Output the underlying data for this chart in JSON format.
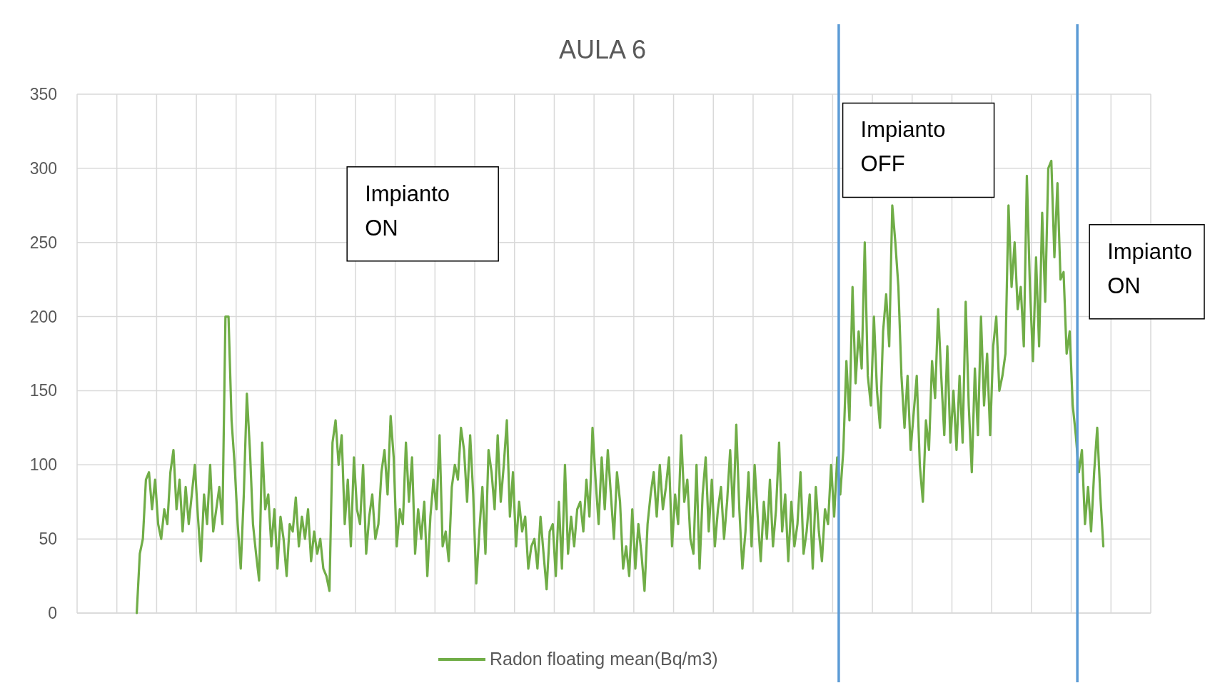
{
  "chart_data": {
    "type": "line",
    "title": "AULA 6",
    "categories": [
      null,
      null,
      null,
      null,
      null,
      null,
      null,
      null,
      null,
      null,
      null,
      null,
      null,
      null,
      null,
      null,
      null,
      null,
      null,
      null,
      null,
      null,
      null,
      null,
      null,
      null,
      null,
      null,
      null,
      null,
      null,
      null,
      null,
      null,
      null,
      null,
      null,
      null,
      null,
      null,
      null,
      null,
      null,
      null,
      null,
      null,
      null,
      null,
      null,
      null,
      null,
      null,
      null,
      null,
      null,
      null,
      null,
      null,
      null,
      null,
      null,
      null,
      null,
      null,
      null,
      null,
      null,
      null,
      null,
      null,
      null,
      null,
      null,
      null,
      null,
      null,
      null,
      null,
      null,
      null,
      null,
      null,
      null,
      null,
      null,
      null,
      null,
      null,
      null,
      null,
      null,
      null,
      null,
      null,
      null,
      null,
      null,
      null,
      null,
      null,
      null,
      null,
      null,
      null,
      null,
      null,
      null,
      null,
      null,
      null,
      null,
      null,
      null,
      null,
      null,
      null,
      null,
      null,
      null,
      null,
      null,
      null,
      null,
      null,
      null,
      null,
      null,
      null,
      null,
      null,
      null,
      null,
      null,
      null,
      null,
      null,
      null,
      null,
      null,
      null,
      null,
      null,
      null,
      null,
      null,
      null,
      null,
      null,
      null,
      null,
      null,
      null,
      null,
      null,
      null,
      null,
      null,
      null,
      null,
      null,
      null,
      null,
      null,
      null,
      null,
      null,
      null,
      null,
      null,
      null,
      null,
      null,
      null,
      null,
      null,
      null,
      null,
      null,
      null,
      null,
      null,
      null,
      null,
      null,
      null,
      null,
      null,
      null,
      null,
      null,
      null,
      null,
      null,
      null,
      null,
      null,
      null,
      null,
      null,
      null,
      null,
      null,
      null,
      null,
      null,
      null,
      null,
      null,
      null,
      null,
      null,
      null,
      null,
      null,
      null,
      null,
      null,
      null,
      null,
      null,
      null,
      null,
      null,
      null,
      null,
      null,
      null,
      null,
      null,
      null,
      null,
      null,
      null,
      null,
      null,
      null,
      null,
      null,
      null,
      null,
      null,
      null,
      null,
      null,
      null,
      null,
      null,
      null,
      null,
      null,
      null,
      null,
      null,
      null,
      null,
      null,
      null,
      null,
      null,
      null,
      null,
      null,
      null,
      null,
      null,
      null,
      null,
      null,
      null,
      null,
      null,
      null,
      null,
      null,
      null,
      null,
      null,
      null,
      null,
      null,
      null,
      null,
      null,
      null,
      null,
      null,
      null,
      null,
      null,
      null,
      null,
      null,
      null,
      null,
      null,
      null,
      null,
      null,
      null,
      null,
      null,
      null,
      null,
      null,
      null,
      null,
      null,
      null,
      null,
      null,
      null,
      null,
      null,
      null,
      null,
      null,
      null,
      null,
      null,
      null,
      null,
      null,
      null,
      null,
      null,
      null,
      null,
      null,
      null,
      null,
      null,
      null,
      null,
      null,
      null,
      null,
      null,
      null,
      null,
      null,
      null,
      null,
      null,
      null,
      null,
      null,
      null,
      null,
      null,
      null,
      null
    ],
    "series": [
      {
        "name": "Radon floating mean(Bq/m3)",
        "color": "#70ad47",
        "values": [
          null,
          null,
          null,
          null,
          null,
          null,
          null,
          null,
          null,
          null,
          null,
          null,
          null,
          null,
          null,
          null,
          null,
          null,
          null,
          0,
          40,
          50,
          90,
          95,
          70,
          90,
          60,
          50,
          70,
          60,
          95,
          110,
          70,
          90,
          55,
          85,
          60,
          80,
          100,
          65,
          35,
          80,
          60,
          100,
          55,
          70,
          85,
          60,
          200,
          200,
          130,
          100,
          60,
          30,
          80,
          148,
          110,
          60,
          40,
          22,
          115,
          70,
          80,
          45,
          70,
          30,
          65,
          50,
          25,
          60,
          55,
          78,
          45,
          65,
          50,
          70,
          35,
          55,
          40,
          50,
          30,
          25,
          15,
          115,
          130,
          100,
          120,
          60,
          90,
          45,
          105,
          70,
          60,
          100,
          40,
          65,
          80,
          50,
          60,
          95,
          110,
          80,
          133,
          105,
          45,
          70,
          60,
          115,
          75,
          105,
          40,
          70,
          50,
          75,
          25,
          65,
          90,
          70,
          120,
          45,
          55,
          35,
          85,
          100,
          90,
          125,
          110,
          75,
          120,
          80,
          20,
          55,
          85,
          40,
          110,
          95,
          70,
          120,
          75,
          100,
          130,
          65,
          95,
          45,
          75,
          55,
          65,
          30,
          45,
          50,
          30,
          65,
          40,
          16,
          55,
          60,
          25,
          75,
          30,
          100,
          40,
          65,
          45,
          70,
          75,
          55,
          90,
          65,
          125,
          90,
          60,
          105,
          70,
          110,
          80,
          50,
          95,
          75,
          30,
          45,
          25,
          70,
          30,
          60,
          40,
          15,
          60,
          80,
          95,
          65,
          100,
          70,
          85,
          105,
          45,
          80,
          60,
          120,
          75,
          90,
          50,
          40,
          100,
          30,
          80,
          105,
          55,
          90,
          45,
          70,
          85,
          50,
          75,
          110,
          65,
          127,
          70,
          30,
          55,
          95,
          45,
          100,
          65,
          35,
          75,
          50,
          90,
          45,
          70,
          115,
          55,
          80,
          35,
          75,
          45,
          60,
          95,
          40,
          55,
          80,
          30,
          85,
          55,
          35,
          70,
          60,
          100,
          65,
          105,
          80,
          110,
          170,
          130,
          220,
          155,
          190,
          165,
          250,
          160,
          140,
          200,
          150,
          125,
          190,
          215,
          180,
          275,
          250,
          220,
          160,
          125,
          160,
          110,
          135,
          160,
          100,
          75,
          130,
          110,
          170,
          145,
          205,
          160,
          120,
          180,
          115,
          150,
          110,
          160,
          115,
          210,
          140,
          95,
          165,
          120,
          200,
          140,
          175,
          120,
          180,
          200,
          150,
          160,
          175,
          275,
          220,
          250,
          205,
          220,
          180,
          295,
          220,
          170,
          240,
          180,
          270,
          210,
          300,
          305,
          240,
          290,
          225,
          230,
          175,
          190,
          140,
          120,
          95,
          110,
          60,
          85,
          55,
          95,
          125,
          80,
          45,
          null,
          null,
          null,
          null,
          null,
          null,
          null,
          null,
          null,
          null,
          null,
          null,
          null,
          null,
          null
        ]
      }
    ],
    "ylim": [
      0,
      350
    ],
    "yticks": [
      0,
      50,
      100,
      150,
      200,
      250,
      300,
      350
    ],
    "grid": true,
    "legend": "bottom",
    "line_style": "solid",
    "marker": "none",
    "annotations": [
      "Impianto ON",
      "Impianto OFF",
      "Impianto ON"
    ]
  }
}
